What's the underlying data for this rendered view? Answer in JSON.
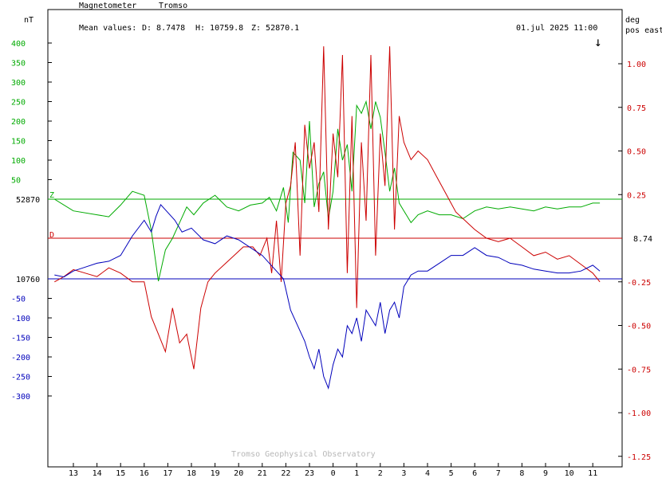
{
  "header": {
    "instrument": "Magnetometer",
    "station": "Tromso",
    "mean_label": "Mean values:",
    "mean_d": "D: 8.7478",
    "mean_h": "H: 10759.8",
    "mean_z": "Z: 52870.1",
    "timestamp": "01.jul 2025 11:00",
    "arrow": "↓"
  },
  "left_axis": {
    "unit": "nT",
    "green_ticks": [
      "400",
      "350",
      "300",
      "250",
      "200",
      "150",
      "100",
      "50"
    ],
    "blue_ticks": [
      "-50",
      "-100",
      "-150",
      "-200",
      "-250",
      "-300"
    ],
    "z_baseline_label": "52870",
    "h_baseline_label": "10760"
  },
  "right_axis": {
    "unit_line1": "deg",
    "unit_line2": "pos east",
    "ticks": [
      "1.00",
      "0.75",
      "0.50",
      "0.25",
      "-0.25",
      "-0.50",
      "-0.75",
      "-1.00",
      "-1.25"
    ],
    "d_baseline_label": "8.74"
  },
  "series_letters": {
    "z": "Z",
    "d": "D"
  },
  "footer": "Tromso Geophysical Observatory",
  "colors": {
    "z": "#00aa00",
    "d": "#cc0000",
    "h": "#0000bb"
  },
  "chart_data": {
    "type": "line",
    "x_ticks": [
      "13",
      "14",
      "15",
      "16",
      "17",
      "18",
      "19",
      "20",
      "21",
      "22",
      "23",
      "0",
      "1",
      "2",
      "3",
      "4",
      "5",
      "6",
      "7",
      "8",
      "9",
      "10",
      "11"
    ],
    "baselines": {
      "Z": 52870,
      "H": 10760,
      "D": 8.74
    },
    "left_ylim_nT": [
      -330,
      420
    ],
    "right_ylim_deg": [
      -1.25,
      1.1
    ],
    "series": [
      {
        "name": "Z",
        "axis": "left",
        "x": [
          12.2,
          13.0,
          14.0,
          14.5,
          15.0,
          15.5,
          16.0,
          16.3,
          16.6,
          16.9,
          17.2,
          17.5,
          17.8,
          18.1,
          18.5,
          19.0,
          19.5,
          20.0,
          20.5,
          21.0,
          21.3,
          21.6,
          21.9,
          22.1,
          22.3,
          22.6,
          22.8,
          23.0,
          23.2,
          23.4,
          23.6,
          23.8,
          24.0,
          24.2,
          24.4,
          24.6,
          24.8,
          25.0,
          25.2,
          25.4,
          25.6,
          25.8,
          26.0,
          26.2,
          26.4,
          26.6,
          26.8,
          27.0,
          27.3,
          27.6,
          28.0,
          28.5,
          29.0,
          29.5,
          30.0,
          30.5,
          31.0,
          31.5,
          32.0,
          32.5,
          33.0,
          33.5,
          34.0,
          34.5,
          35.0,
          35.3
        ],
        "y": [
          0,
          -30,
          -40,
          -45,
          -15,
          20,
          10,
          -80,
          -210,
          -130,
          -100,
          -60,
          -20,
          -40,
          -10,
          10,
          -20,
          -30,
          -15,
          -10,
          5,
          -30,
          30,
          -60,
          120,
          100,
          -10,
          200,
          -20,
          40,
          70,
          -50,
          20,
          180,
          100,
          140,
          20,
          240,
          220,
          250,
          180,
          250,
          210,
          120,
          20,
          80,
          -10,
          -30,
          -60,
          -40,
          -30,
          -40,
          -40,
          -50,
          -30,
          -20,
          -25,
          -20,
          -25,
          -30,
          -20,
          -25,
          -20,
          -20,
          -10,
          -10
        ]
      },
      {
        "name": "D",
        "axis": "right",
        "x": [
          12.2,
          12.6,
          13.0,
          13.5,
          14.0,
          14.5,
          15.0,
          15.5,
          16.0,
          16.3,
          16.6,
          16.9,
          17.2,
          17.5,
          17.8,
          18.1,
          18.4,
          18.7,
          19.0,
          19.4,
          19.8,
          20.2,
          20.6,
          20.9,
          21.2,
          21.4,
          21.6,
          21.8,
          22.0,
          22.2,
          22.4,
          22.6,
          22.8,
          23.0,
          23.2,
          23.4,
          23.6,
          23.8,
          24.0,
          24.2,
          24.4,
          24.6,
          24.8,
          25.0,
          25.2,
          25.4,
          25.6,
          25.8,
          26.0,
          26.2,
          26.4,
          26.6,
          26.8,
          27.0,
          27.3,
          27.6,
          28.0,
          28.4,
          28.8,
          29.2,
          29.6,
          30.0,
          30.5,
          31.0,
          31.5,
          32.0,
          32.5,
          33.0,
          33.5,
          34.0,
          34.5,
          35.0,
          35.3
        ],
        "y": [
          -0.25,
          -0.22,
          -0.18,
          -0.2,
          -0.22,
          -0.17,
          -0.2,
          -0.25,
          -0.25,
          -0.45,
          -0.55,
          -0.65,
          -0.4,
          -0.6,
          -0.55,
          -0.75,
          -0.4,
          -0.25,
          -0.2,
          -0.15,
          -0.1,
          -0.05,
          -0.05,
          -0.1,
          0.0,
          -0.2,
          0.1,
          -0.25,
          0.2,
          0.3,
          0.55,
          -0.1,
          0.65,
          0.4,
          0.55,
          0.15,
          1.1,
          0.05,
          0.6,
          0.35,
          1.05,
          -0.2,
          0.7,
          -0.4,
          0.55,
          0.1,
          1.05,
          -0.1,
          0.6,
          0.3,
          1.1,
          0.05,
          0.7,
          0.55,
          0.45,
          0.5,
          0.45,
          0.35,
          0.25,
          0.15,
          0.1,
          0.05,
          0.0,
          -0.02,
          0.0,
          -0.05,
          -0.1,
          -0.08,
          -0.12,
          -0.1,
          -0.15,
          -0.2,
          -0.25
        ]
      },
      {
        "name": "H",
        "axis": "left",
        "x": [
          12.2,
          12.6,
          13.0,
          13.5,
          14.0,
          14.5,
          15.0,
          15.5,
          16.0,
          16.3,
          16.5,
          16.7,
          17.0,
          17.3,
          17.6,
          18.0,
          18.5,
          19.0,
          19.5,
          20.0,
          20.5,
          21.0,
          21.3,
          21.6,
          21.9,
          22.2,
          22.5,
          22.8,
          23.0,
          23.2,
          23.4,
          23.6,
          23.8,
          24.0,
          24.2,
          24.4,
          24.6,
          24.8,
          25.0,
          25.2,
          25.4,
          25.6,
          25.8,
          26.0,
          26.2,
          26.4,
          26.6,
          26.8,
          27.0,
          27.3,
          27.6,
          28.0,
          28.5,
          29.0,
          29.5,
          30.0,
          30.5,
          31.0,
          31.5,
          32.0,
          32.5,
          33.0,
          33.5,
          34.0,
          34.5,
          35.0,
          35.3
        ],
        "y": [
          10,
          5,
          20,
          30,
          40,
          45,
          60,
          110,
          150,
          120,
          160,
          190,
          170,
          150,
          120,
          130,
          100,
          90,
          110,
          100,
          80,
          60,
          40,
          20,
          0,
          -80,
          -120,
          -160,
          -200,
          -230,
          -180,
          -250,
          -280,
          -220,
          -180,
          -200,
          -120,
          -140,
          -100,
          -160,
          -80,
          -100,
          -120,
          -60,
          -140,
          -80,
          -60,
          -100,
          -20,
          10,
          20,
          20,
          40,
          60,
          60,
          80,
          60,
          55,
          40,
          35,
          25,
          20,
          15,
          15,
          20,
          35,
          20
        ]
      }
    ]
  }
}
